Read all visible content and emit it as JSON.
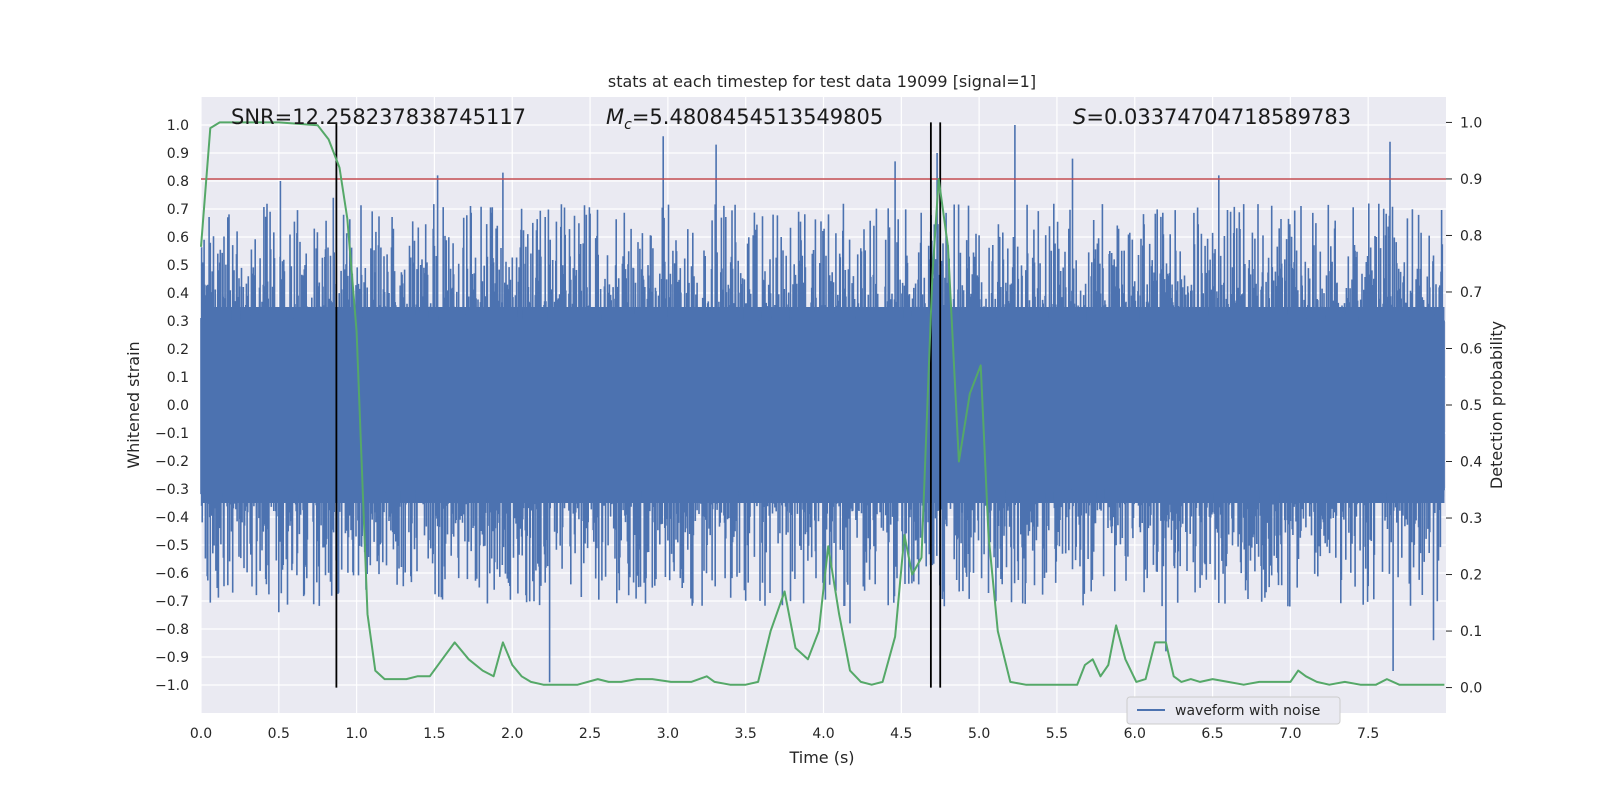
{
  "chart_data": {
    "type": "line",
    "title": "stats at each timestep for test data 19099 [signal=1]",
    "xlabel": "Time (s)",
    "ylabel": "Whitened strain",
    "y2label": "Detection probability",
    "xlim": [
      0,
      8
    ],
    "ylim": [
      -1.1,
      1.1
    ],
    "y2lim": [
      -0.045,
      1.045
    ],
    "xticks": [
      0.0,
      0.5,
      1.0,
      1.5,
      2.0,
      2.5,
      3.0,
      3.5,
      4.0,
      4.5,
      5.0,
      5.5,
      6.0,
      6.5,
      7.0,
      7.5
    ],
    "xtick_labels": [
      "0.0",
      "0.5",
      "1.0",
      "1.5",
      "2.0",
      "2.5",
      "3.0",
      "3.5",
      "4.0",
      "4.5",
      "5.0",
      "5.5",
      "6.0",
      "6.5",
      "7.0",
      "7.5"
    ],
    "yticks": [
      1.0,
      0.9,
      0.8,
      0.7,
      0.6,
      0.5,
      0.4,
      0.3,
      0.2,
      0.1,
      0.0,
      -0.1,
      -0.2,
      -0.3,
      -0.4,
      -0.5,
      -0.6,
      -0.7,
      -0.8,
      -0.9,
      -1.0
    ],
    "ytick_labels": [
      "1.0",
      "0.9",
      "0.8",
      "0.7",
      "0.6",
      "0.5",
      "0.4",
      "0.3",
      "0.2",
      "0.1",
      "0.0",
      "−0.1",
      "−0.2",
      "−0.3",
      "−0.4",
      "−0.5",
      "−0.6",
      "−0.7",
      "−0.8",
      "−0.9",
      "−1.0"
    ],
    "y2ticks": [
      1.0,
      0.9,
      0.8,
      0.7,
      0.6,
      0.5,
      0.4,
      0.3,
      0.2,
      0.1,
      0.0
    ],
    "y2tick_labels": [
      "1.0",
      "0.9",
      "0.8",
      "0.7",
      "0.6",
      "0.5",
      "0.4",
      "0.3",
      "0.2",
      "0.1",
      "0.0"
    ],
    "annotations": {
      "snr": "SNR=12.258237838745117",
      "mc_symbol": "M",
      "mc_sub": "c",
      "mc_value": "=5.4808454513549805",
      "s_symbol": "S",
      "s_value": "=0.03374704718589783"
    },
    "threshold": {
      "y2": 0.9,
      "color": "#c44e52"
    },
    "vlines": [
      0.87,
      4.69,
      4.75
    ],
    "vline_y2_range": [
      0.0,
      1.0
    ],
    "legend": {
      "label": "waveform with noise",
      "placement": "lower-right"
    },
    "series": [
      {
        "name": "waveform with noise",
        "axis": "left",
        "color": "#4c72b0",
        "kind": "noise-band",
        "t_end": 7.99,
        "envelope_pos": 0.35,
        "envelope_neg": -0.35,
        "peaks": [
          {
            "t": 0.51,
            "y": 0.8
          },
          {
            "t": 0.85,
            "y": 0.74
          },
          {
            "t": 1.52,
            "y": 0.82
          },
          {
            "t": 1.94,
            "y": 0.83
          },
          {
            "t": 2.97,
            "y": 0.96
          },
          {
            "t": 3.31,
            "y": 0.93
          },
          {
            "t": 4.46,
            "y": 0.87
          },
          {
            "t": 4.73,
            "y": 0.9
          },
          {
            "t": 5.23,
            "y": 1.0
          },
          {
            "t": 5.6,
            "y": 0.88
          },
          {
            "t": 6.54,
            "y": 0.82
          },
          {
            "t": 7.64,
            "y": 0.94
          },
          {
            "t": 2.24,
            "y": -0.99
          },
          {
            "t": 0.5,
            "y": -0.74
          },
          {
            "t": 4.17,
            "y": -0.78
          },
          {
            "t": 6.2,
            "y": -0.88
          },
          {
            "t": 7.66,
            "y": -0.95
          },
          {
            "t": 7.92,
            "y": -0.84
          }
        ]
      },
      {
        "name": "Detection probability",
        "axis": "right",
        "color": "#55a868",
        "x": [
          0.0,
          0.06,
          0.12,
          0.5,
          0.75,
          0.82,
          0.89,
          0.94,
          1.0,
          1.07,
          1.12,
          1.18,
          1.25,
          1.32,
          1.39,
          1.47,
          1.55,
          1.63,
          1.72,
          1.81,
          1.88,
          1.94,
          2.0,
          2.06,
          2.12,
          2.2,
          2.3,
          2.42,
          2.55,
          2.62,
          2.7,
          2.8,
          2.9,
          3.02,
          3.15,
          3.25,
          3.3,
          3.4,
          3.5,
          3.58,
          3.66,
          3.75,
          3.82,
          3.9,
          3.97,
          4.03,
          4.1,
          4.17,
          4.24,
          4.31,
          4.38,
          4.46,
          4.52,
          4.57,
          4.63,
          4.7,
          4.74,
          4.8,
          4.87,
          4.94,
          5.01,
          5.06,
          5.12,
          5.2,
          5.3,
          5.4,
          5.5,
          5.58,
          5.63,
          5.68,
          5.73,
          5.78,
          5.83,
          5.88,
          5.94,
          6.01,
          6.07,
          6.13,
          6.2,
          6.25,
          6.3,
          6.36,
          6.42,
          6.5,
          6.6,
          6.7,
          6.8,
          6.9,
          7.0,
          7.05,
          7.1,
          7.17,
          7.25,
          7.35,
          7.45,
          7.55,
          7.62,
          7.7,
          7.8,
          7.9,
          7.99
        ],
        "y": [
          0.78,
          0.99,
          1.0,
          1.0,
          0.995,
          0.97,
          0.92,
          0.83,
          0.63,
          0.13,
          0.03,
          0.015,
          0.015,
          0.015,
          0.02,
          0.02,
          0.05,
          0.08,
          0.05,
          0.03,
          0.02,
          0.08,
          0.04,
          0.02,
          0.01,
          0.005,
          0.005,
          0.005,
          0.015,
          0.01,
          0.01,
          0.015,
          0.015,
          0.01,
          0.01,
          0.02,
          0.01,
          0.005,
          0.005,
          0.01,
          0.1,
          0.17,
          0.07,
          0.05,
          0.1,
          0.25,
          0.13,
          0.03,
          0.01,
          0.005,
          0.01,
          0.09,
          0.27,
          0.2,
          0.23,
          0.73,
          0.9,
          0.78,
          0.4,
          0.52,
          0.57,
          0.27,
          0.1,
          0.01,
          0.005,
          0.005,
          0.005,
          0.005,
          0.005,
          0.04,
          0.05,
          0.02,
          0.04,
          0.11,
          0.05,
          0.01,
          0.015,
          0.08,
          0.08,
          0.02,
          0.01,
          0.015,
          0.01,
          0.015,
          0.01,
          0.005,
          0.01,
          0.01,
          0.01,
          0.03,
          0.02,
          0.01,
          0.005,
          0.01,
          0.005,
          0.005,
          0.015,
          0.005,
          0.005,
          0.005,
          0.005
        ]
      }
    ]
  }
}
